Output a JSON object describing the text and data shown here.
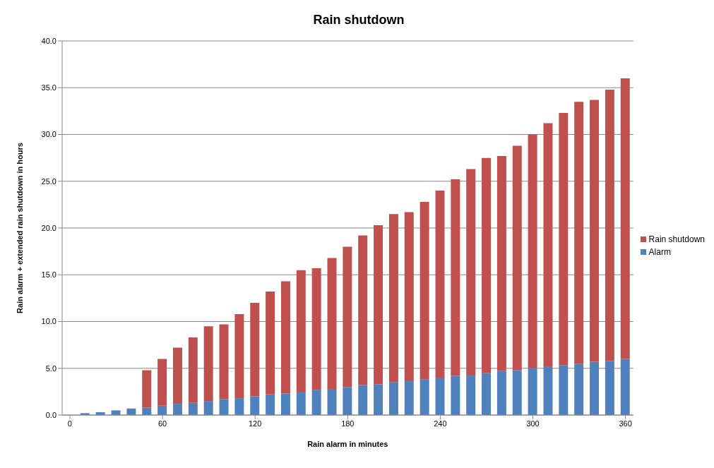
{
  "chart_data": {
    "type": "bar",
    "title": "Rain shutdown",
    "xlabel": "Rain alarm in minutes",
    "ylabel": "Rain alarm + extended rain shutdown in hours",
    "stacked": true,
    "grid": "y",
    "legend": "right",
    "x": [
      0,
      10,
      20,
      30,
      40,
      50,
      60,
      70,
      80,
      90,
      100,
      110,
      120,
      130,
      140,
      150,
      160,
      170,
      180,
      190,
      200,
      210,
      220,
      230,
      240,
      250,
      260,
      270,
      280,
      290,
      300,
      310,
      320,
      330,
      340,
      350,
      360
    ],
    "xlim": [
      -5,
      365
    ],
    "xticks": [
      0,
      60,
      120,
      180,
      240,
      300,
      360
    ],
    "ylim": [
      0,
      40
    ],
    "yticks": [
      {
        "value": 0,
        "label": "0.0"
      },
      {
        "value": 5,
        "label": "5.0"
      },
      {
        "value": 10,
        "label": "10.0"
      },
      {
        "value": 15,
        "label": "15.0"
      },
      {
        "value": 20,
        "label": "20.0"
      },
      {
        "value": 25,
        "label": "25.0"
      },
      {
        "value": 30,
        "label": "30.0"
      },
      {
        "value": 35,
        "label": "35.0"
      },
      {
        "value": 40,
        "label": "40.0"
      }
    ],
    "series": [
      {
        "name": "Alarm",
        "color": "#4f81bd",
        "values": [
          0,
          0.2,
          0.3,
          0.5,
          0.7,
          0.8,
          1.0,
          1.2,
          1.3,
          1.5,
          1.7,
          1.8,
          2.0,
          2.2,
          2.3,
          2.5,
          2.7,
          2.8,
          3.0,
          3.2,
          3.3,
          3.5,
          3.7,
          3.8,
          4.0,
          4.2,
          4.3,
          4.5,
          4.7,
          4.8,
          5.0,
          5.2,
          5.3,
          5.5,
          5.7,
          5.8,
          6.0
        ]
      },
      {
        "name": "Rain shutdown",
        "color": "#c0504d",
        "values": [
          0,
          0,
          0,
          0,
          0,
          4,
          5,
          6,
          7,
          8,
          8,
          9,
          10,
          11,
          12,
          13,
          13,
          14,
          15,
          16,
          17,
          18,
          18,
          19,
          20,
          21,
          22,
          23,
          23,
          24,
          25,
          26,
          27,
          28,
          28,
          29,
          30
        ]
      }
    ]
  }
}
